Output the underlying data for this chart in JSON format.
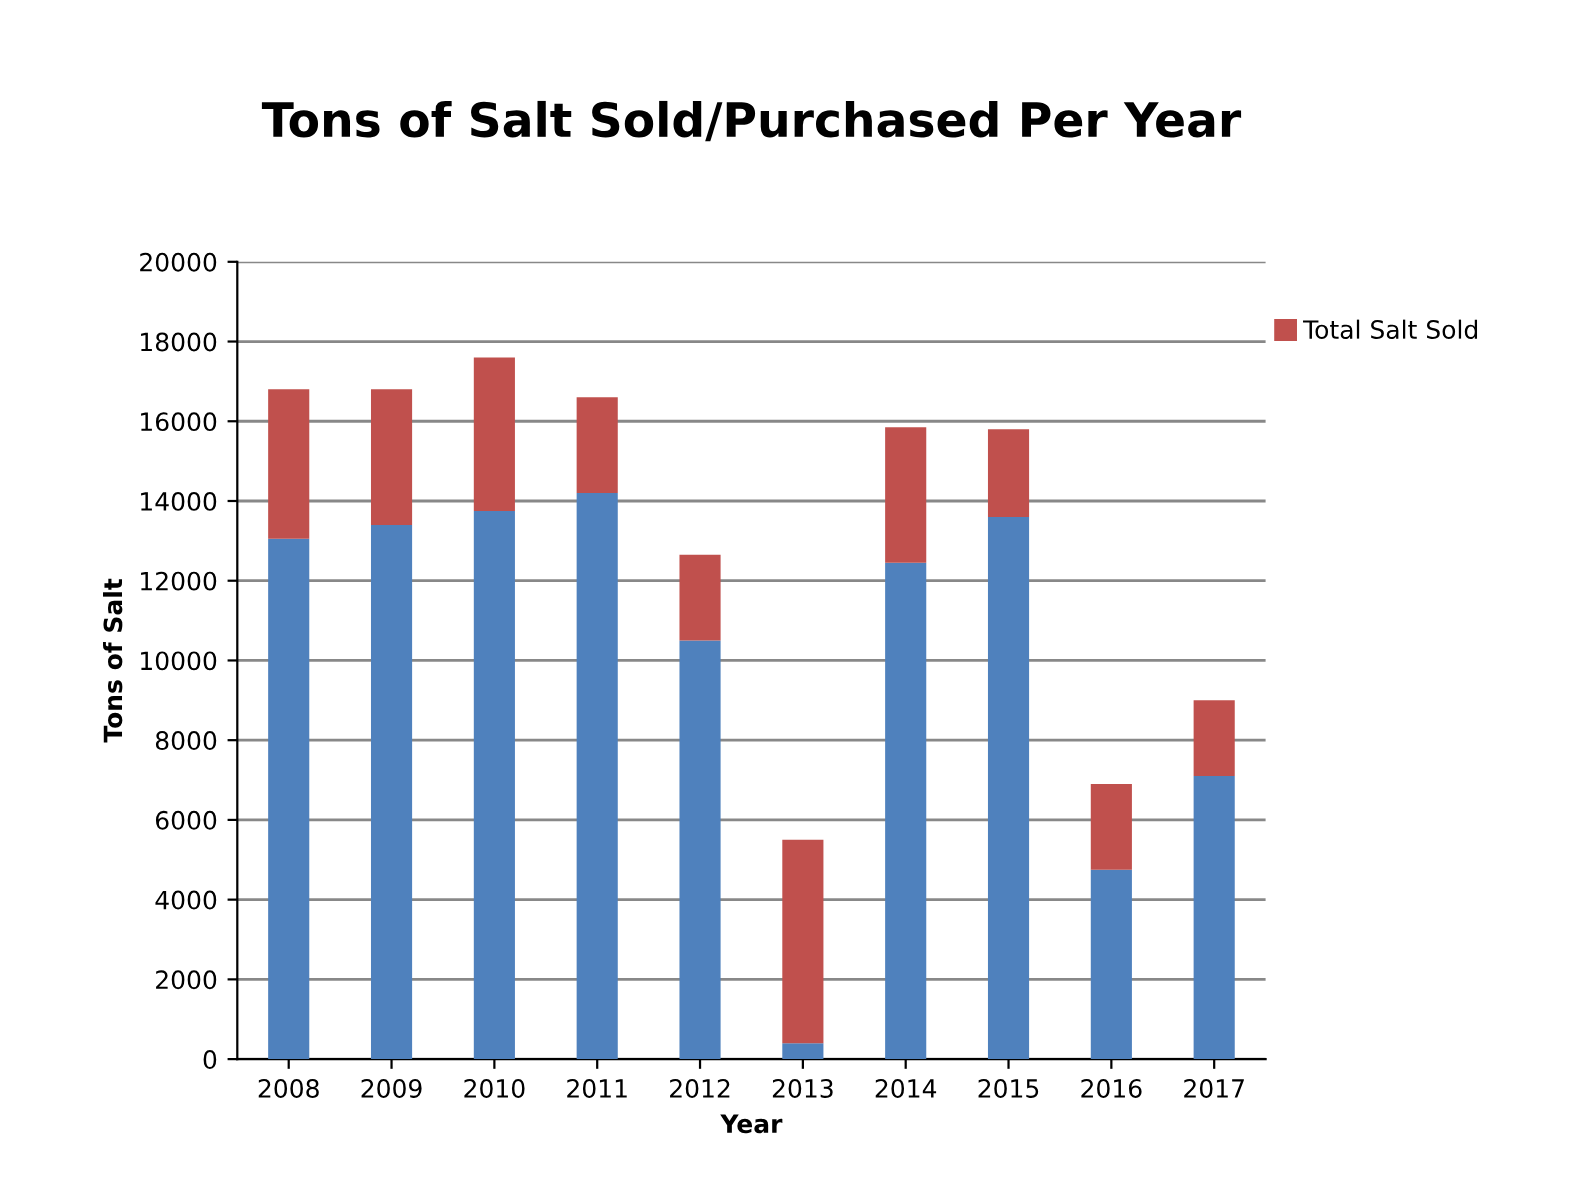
{
  "chart_data": {
    "type": "bar",
    "title": "Tons of Salt Sold/Purchased Per Year",
    "xlabel": "Year",
    "ylabel": "Tons of Salt",
    "categories": [
      "2008",
      "2009",
      "2010",
      "2011",
      "2012",
      "2013",
      "2014",
      "2015",
      "2016",
      "2017"
    ],
    "stacked": true,
    "series": [
      {
        "color": "#4f81bd",
        "values": [
          13050,
          13400,
          13750,
          14200,
          10500,
          400,
          12450,
          13600,
          4750,
          7100
        ]
      },
      {
        "name": "Total Salt Sold",
        "color": "#c0504d",
        "values": [
          3750,
          3400,
          3850,
          2400,
          2150,
          5100,
          3400,
          2200,
          2150,
          1900
        ]
      }
    ],
    "ylim": [
      0,
      20000
    ],
    "yticks": [
      0,
      2000,
      4000,
      6000,
      8000,
      10000,
      12000,
      14000,
      16000,
      18000,
      20000
    ],
    "grid": "y",
    "legend": "top right"
  }
}
